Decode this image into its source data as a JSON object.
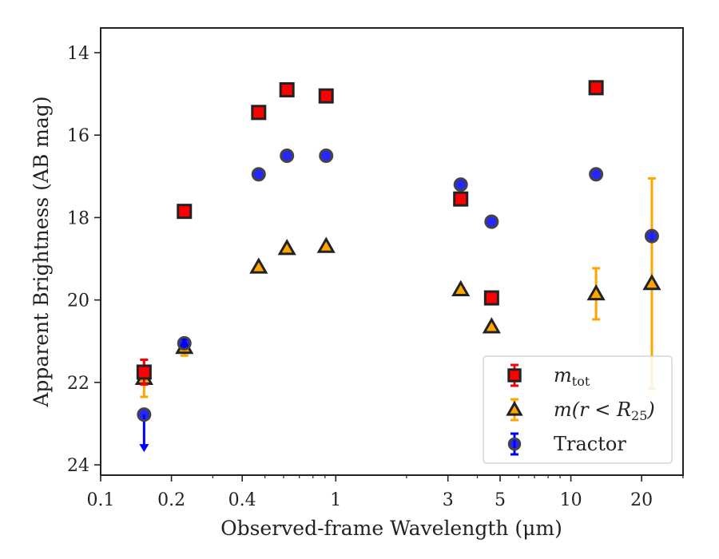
{
  "chart_data": {
    "type": "scatter",
    "xlabel": "Observed-frame Wavelength (μm)",
    "ylabel": "Apparent Brightness (AB mag)",
    "xscale": "log",
    "xlim": [
      0.1,
      30
    ],
    "ylim": [
      24.25,
      13.4
    ],
    "y_inverted": true,
    "x_ticks": [
      {
        "value": 0.1,
        "label": "0.1"
      },
      {
        "value": 0.2,
        "label": "0.2"
      },
      {
        "value": 0.4,
        "label": "0.4"
      },
      {
        "value": 1,
        "label": "1"
      },
      {
        "value": 3,
        "label": "3"
      },
      {
        "value": 5,
        "label": "5"
      },
      {
        "value": 10,
        "label": "10"
      },
      {
        "value": 20,
        "label": "20"
      }
    ],
    "y_ticks": [
      {
        "value": 14,
        "label": "14"
      },
      {
        "value": 16,
        "label": "16"
      },
      {
        "value": 18,
        "label": "18"
      },
      {
        "value": 20,
        "label": "20"
      },
      {
        "value": 22,
        "label": "22"
      },
      {
        "value": 24,
        "label": "24"
      }
    ],
    "grid": false,
    "legend_position": "lower-right",
    "series": [
      {
        "name": "m_tot",
        "label_main": "m",
        "label_sub": "tot",
        "marker": "square",
        "color": "#ff0000",
        "errcolor": "#ff0000",
        "points": [
          {
            "x": 0.153,
            "y": 21.75,
            "err": 0.3
          },
          {
            "x": 0.227,
            "y": 17.85,
            "err": 0
          },
          {
            "x": 0.47,
            "y": 15.45,
            "err": 0
          },
          {
            "x": 0.62,
            "y": 14.9,
            "err": 0
          },
          {
            "x": 0.91,
            "y": 15.05,
            "err": 0
          },
          {
            "x": 3.4,
            "y": 17.55,
            "err": 0
          },
          {
            "x": 4.6,
            "y": 19.95,
            "err": 0
          },
          {
            "x": 12.8,
            "y": 14.85,
            "err": 0
          }
        ]
      },
      {
        "name": "m(r < R25)",
        "label_main": "m(r < R",
        "label_sub": "25",
        "label_end": ")",
        "marker": "triangle",
        "color": "#ffa500",
        "errcolor": "#ffa500",
        "points": [
          {
            "x": 0.153,
            "y": 21.9,
            "err": 0.45
          },
          {
            "x": 0.227,
            "y": 21.15,
            "err": 0.2
          },
          {
            "x": 0.47,
            "y": 19.2,
            "err": 0
          },
          {
            "x": 0.62,
            "y": 18.75,
            "err": 0
          },
          {
            "x": 0.91,
            "y": 18.7,
            "err": 0
          },
          {
            "x": 3.4,
            "y": 19.75,
            "err": 0
          },
          {
            "x": 4.6,
            "y": 20.65,
            "err": 0
          },
          {
            "x": 12.8,
            "y": 19.85,
            "err": 0.62
          },
          {
            "x": 22.1,
            "y": 19.6,
            "err": 2.55
          }
        ]
      },
      {
        "name": "Tractor",
        "label_main": "Tractor",
        "marker": "circle",
        "color": "#0000ff",
        "errcolor": "#0000ff",
        "points": [
          {
            "x": 0.153,
            "y": 22.78,
            "err": 0,
            "upper_limit": true
          },
          {
            "x": 0.227,
            "y": 21.05,
            "err": 0.1
          },
          {
            "x": 0.47,
            "y": 16.95,
            "err": 0
          },
          {
            "x": 0.62,
            "y": 16.5,
            "err": 0
          },
          {
            "x": 0.91,
            "y": 16.5,
            "err": 0
          },
          {
            "x": 3.4,
            "y": 17.2,
            "err": 0
          },
          {
            "x": 4.6,
            "y": 18.1,
            "err": 0
          },
          {
            "x": 12.8,
            "y": 16.95,
            "err": 0
          },
          {
            "x": 22.1,
            "y": 18.45,
            "err": 0
          }
        ]
      }
    ]
  }
}
